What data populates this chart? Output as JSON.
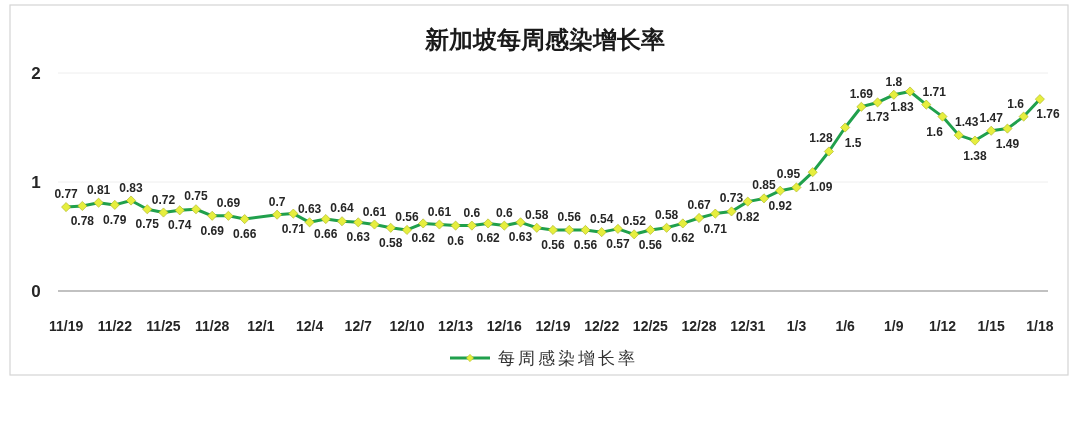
{
  "chart_data": {
    "type": "line",
    "title": "新加坡每周感染增长率",
    "categories": [
      "11/19",
      null,
      null,
      "11/22",
      null,
      null,
      "11/25",
      null,
      null,
      "11/28",
      null,
      null,
      "12/1",
      null,
      null,
      "12/4",
      null,
      null,
      "12/7",
      null,
      null,
      "12/10",
      null,
      null,
      "12/13",
      null,
      null,
      "12/16",
      null,
      null,
      "12/19",
      null,
      null,
      "12/22",
      null,
      null,
      "12/25",
      null,
      null,
      "12/28",
      null,
      null,
      "12/31",
      null,
      null,
      "1/3",
      null,
      null,
      "1/6",
      null,
      null,
      "1/9",
      null,
      null,
      "1/12",
      null,
      null,
      "1/15",
      null,
      null,
      "1/18"
    ],
    "series": [
      {
        "name": "每周感染增长率",
        "color": "#20a04c",
        "values": [
          0.77,
          0.78,
          0.81,
          0.79,
          0.83,
          0.75,
          0.72,
          0.74,
          0.75,
          0.69,
          0.69,
          0.66,
          null,
          0.7,
          0.71,
          0.63,
          0.66,
          0.64,
          0.63,
          0.61,
          0.58,
          0.56,
          0.62,
          0.61,
          0.6,
          0.6,
          0.62,
          0.6,
          0.63,
          0.58,
          0.56,
          0.56,
          0.56,
          0.54,
          0.57,
          0.52,
          0.56,
          0.58,
          0.62,
          0.67,
          0.71,
          0.73,
          0.82,
          0.85,
          0.92,
          0.95,
          1.09,
          1.28,
          1.5,
          1.69,
          1.73,
          1.8,
          1.83,
          1.71,
          1.6,
          1.43,
          1.38,
          1.47,
          1.49,
          1.6,
          1.76
        ]
      }
    ],
    "ylim": [
      0,
      2
    ],
    "yticks": [
      0,
      1,
      2
    ],
    "grid": "y",
    "legend": "bottom",
    "marker": "diamond",
    "line_style": "solid",
    "data_labels": true
  }
}
